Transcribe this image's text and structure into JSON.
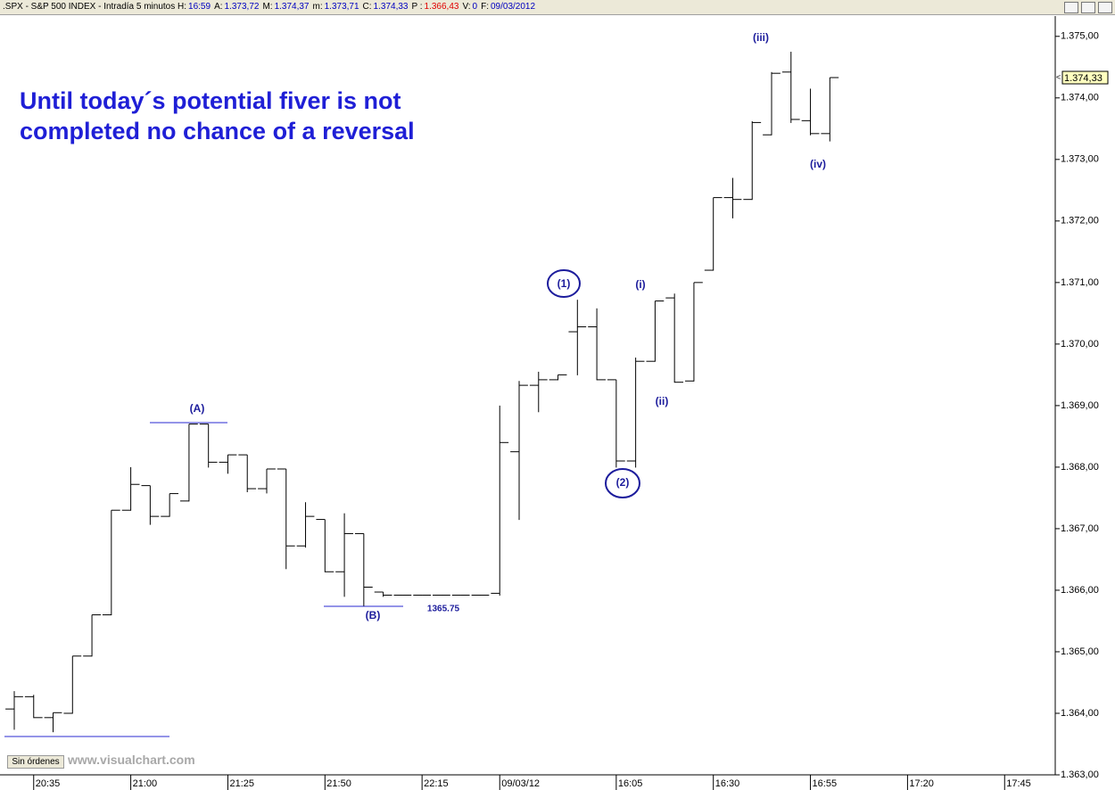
{
  "header": {
    "title": ".SPX - S&P 500 INDEX - Intradía 5 minutos",
    "fields": [
      {
        "label": "H:",
        "value": "16:59",
        "color": "#0000c0"
      },
      {
        "label": "A:",
        "value": "1.373,72",
        "color": "#0000c0"
      },
      {
        "label": "M:",
        "value": "1.374,37",
        "color": "#0000c0"
      },
      {
        "label": "m:",
        "value": "1.373,71",
        "color": "#0000c0"
      },
      {
        "label": "C:",
        "value": "1.374,33",
        "color": "#0000c0"
      },
      {
        "label": "P :",
        "value": "1.366,43",
        "color": "#e00000"
      },
      {
        "label": "V:",
        "value": "0",
        "color": "#0000c0"
      },
      {
        "label": "F:",
        "value": "09/03/2012",
        "color": "#0000c0"
      }
    ]
  },
  "chart_data": {
    "type": "ohlc",
    "color": "#000000",
    "annotation": [
      "Until today´s potential fiver is not",
      "completed no chance of a reversal"
    ],
    "annotation_color": "#1f1fd6",
    "wave_labels": [
      "(A)",
      "(B)",
      "(1)",
      "(2)",
      "(i)",
      "(ii)",
      "(iii)",
      "(iv)"
    ],
    "level_label": "1365.75",
    "label_color": "#1c1c9c",
    "categories": [
      null,
      "20:35",
      null,
      null,
      null,
      null,
      "21:00",
      null,
      null,
      null,
      null,
      "21:25",
      null,
      null,
      null,
      null,
      "21:50",
      null,
      null,
      null,
      null,
      "22:15",
      null,
      null,
      null,
      "09/03/12",
      null,
      null,
      null,
      null,
      null,
      "16:05",
      null,
      null,
      null,
      null,
      "16:30",
      null,
      null,
      null,
      null,
      "16:55",
      null,
      null,
      null,
      null,
      "17:20",
      null,
      null,
      null,
      null,
      "17:45",
      null
    ],
    "open": [
      1364.07,
      1364.27,
      1363.93,
      1364.0,
      1364.93,
      1365.6,
      1367.3,
      1367.7,
      1367.2,
      1367.45,
      1368.7,
      1368.08,
      1368.2,
      1367.65,
      1367.97,
      1366.72,
      1367.15,
      1366.3,
      1366.92,
      1365.97,
      1365.92,
      1365.92,
      1365.92,
      1365.92,
      1365.92,
      1365.95,
      1368.25,
      1369.33,
      1369.42,
      1370.2,
      1370.28,
      1369.42,
      1368.1,
      1369.72,
      1370.75,
      1369.4,
      1371.2,
      1372.38,
      1372.35,
      1373.4,
      1374.42,
      1373.63,
      1373.42,
      null,
      null,
      null,
      null,
      null,
      null,
      null,
      null,
      null,
      null
    ],
    "high": [
      1364.36,
      1364.3,
      1364.01,
      1364.93,
      1365.6,
      1367.3,
      1368.0,
      1367.7,
      1367.57,
      1368.7,
      1368.7,
      1368.2,
      1368.2,
      1367.97,
      1367.97,
      1367.43,
      1367.15,
      1367.25,
      1366.92,
      1365.97,
      1365.92,
      1365.92,
      1365.92,
      1365.92,
      1365.92,
      1369.0,
      1369.4,
      1369.55,
      1369.5,
      1370.72,
      1370.58,
      1369.42,
      1369.78,
      1370.7,
      1370.82,
      1371.0,
      1372.38,
      1372.7,
      1373.62,
      1374.42,
      1374.75,
      1374.15,
      1374.33,
      null,
      null,
      null,
      null,
      null,
      null,
      null,
      null,
      null,
      null
    ],
    "low": [
      1363.74,
      1363.93,
      1363.7,
      1364.0,
      1364.93,
      1365.6,
      1367.3,
      1367.07,
      1367.2,
      1367.45,
      1368.0,
      1367.9,
      1367.6,
      1367.58,
      1366.35,
      1366.7,
      1366.3,
      1365.9,
      1365.75,
      1365.9,
      1365.92,
      1365.92,
      1365.92,
      1365.92,
      1365.92,
      1365.92,
      1367.15,
      1368.9,
      1369.42,
      1369.5,
      1369.42,
      1368.0,
      1368.0,
      1369.72,
      1369.38,
      1369.4,
      1371.2,
      1372.05,
      1372.35,
      1373.4,
      1373.6,
      1373.4,
      1373.3,
      null,
      null,
      null,
      null,
      null,
      null,
      null,
      null,
      null,
      null
    ],
    "close": [
      1364.27,
      1363.93,
      1364.01,
      1364.93,
      1365.6,
      1367.3,
      1367.72,
      1367.2,
      1367.57,
      1368.7,
      1368.08,
      1368.2,
      1367.65,
      1367.97,
      1366.72,
      1367.2,
      1366.3,
      1366.92,
      1366.05,
      1365.92,
      1365.92,
      1365.92,
      1365.92,
      1365.92,
      1365.92,
      1368.4,
      1369.33,
      1369.42,
      1369.5,
      1370.28,
      1369.42,
      1368.1,
      1369.72,
      1370.7,
      1369.38,
      1371.0,
      1372.38,
      1372.35,
      1373.6,
      1374.4,
      1373.65,
      1373.42,
      1374.33,
      null,
      null,
      null,
      null,
      null,
      null,
      null,
      null,
      null,
      null
    ],
    "ylim": [
      1363,
      1375.33
    ],
    "yticks": [
      {
        "value": 1363,
        "label": "1.363,00"
      },
      {
        "value": 1364,
        "label": "1.364,00"
      },
      {
        "value": 1365,
        "label": "1.365,00"
      },
      {
        "value": 1366,
        "label": "1.366,00"
      },
      {
        "value": 1367,
        "label": "1.367,00"
      },
      {
        "value": 1368,
        "label": "1.368,00"
      },
      {
        "value": 1369,
        "label": "1.369,00"
      },
      {
        "value": 1370,
        "label": "1.370,00"
      },
      {
        "value": 1371,
        "label": "1.371,00"
      },
      {
        "value": 1372,
        "label": "1.372,00"
      },
      {
        "value": 1373,
        "label": "1.373,00"
      },
      {
        "value": 1374,
        "label": "1.374,00"
      },
      {
        "value": 1375,
        "label": "1.375,00"
      }
    ],
    "last_price": {
      "value": 1374.33,
      "label": "1.374,33"
    },
    "grid": false
  },
  "footer": {
    "orders_button": "Sin órdenes",
    "watermark": "www.visualchart.com"
  }
}
